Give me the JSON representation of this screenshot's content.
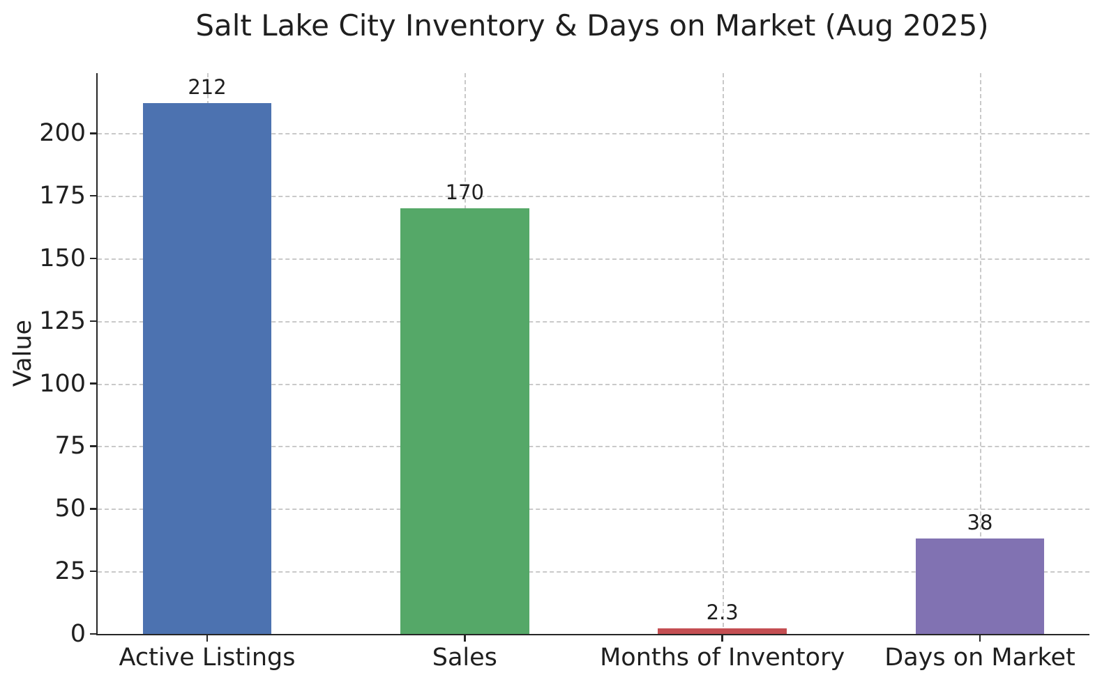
{
  "chart_data": {
    "type": "bar",
    "title": "Salt Lake City Inventory & Days on Market (Aug 2025)",
    "xlabel": "",
    "ylabel": "Value",
    "categories": [
      "Active Listings",
      "Sales",
      "Months of Inventory",
      "Days on Market"
    ],
    "values": [
      212,
      170,
      2.3,
      38
    ],
    "value_labels": [
      "212",
      "170",
      "2.3",
      "38"
    ],
    "bar_colors": [
      "#4C72B0",
      "#55A868",
      "#C44E52",
      "#8172B2"
    ],
    "yticks": [
      0,
      25,
      50,
      75,
      100,
      125,
      150,
      175,
      200
    ],
    "ylim": [
      0,
      224
    ],
    "grid": "dashed gridlines on both axes",
    "grid_color": "#c9c9c9",
    "spine_color": "#262626",
    "legend": "none"
  }
}
